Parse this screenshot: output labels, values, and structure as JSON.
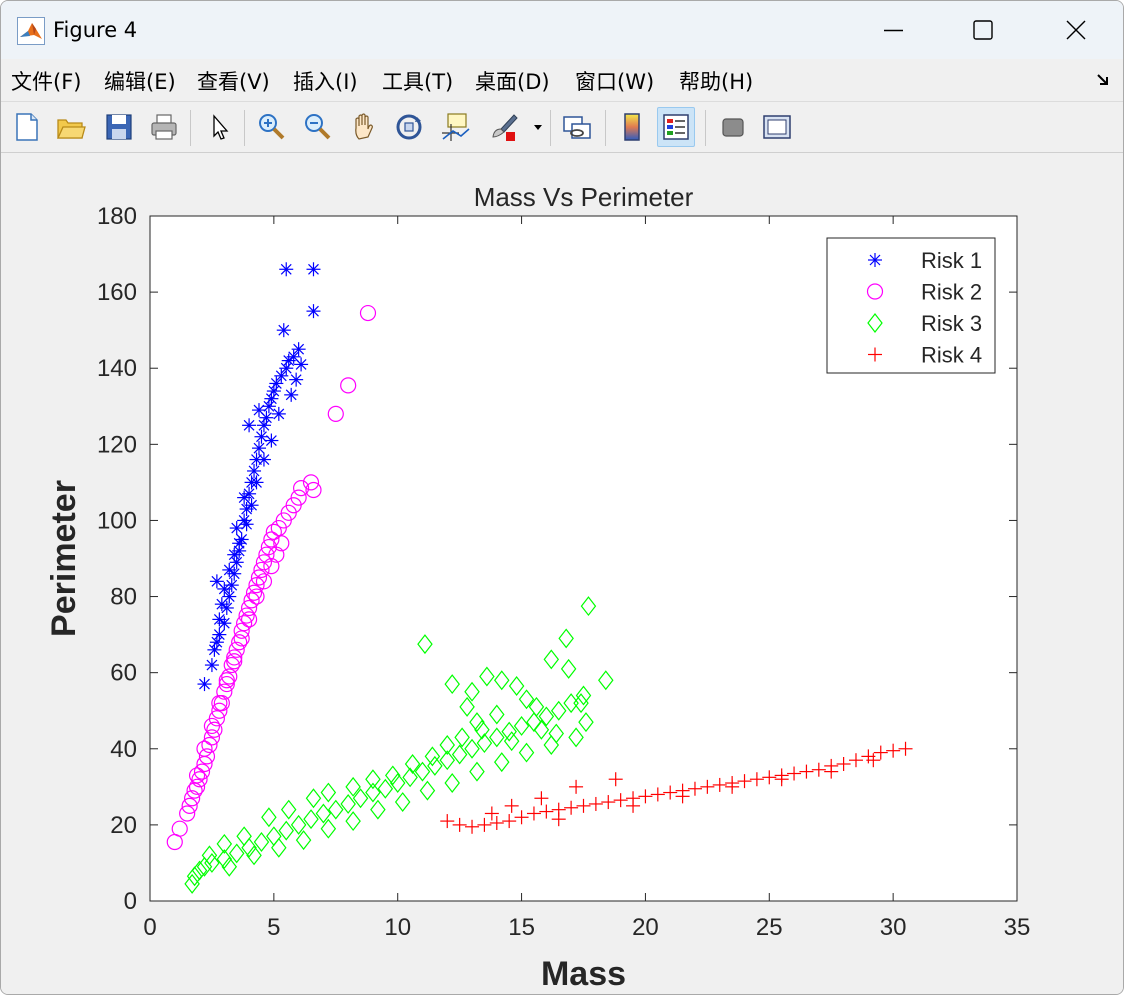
{
  "window": {
    "title": "Figure 4",
    "minimize_icon": "minimize-icon",
    "maximize_icon": "maximize-icon",
    "close_icon": "close-icon"
  },
  "menu": {
    "items": [
      "文件(F)",
      "编辑(E)",
      "查看(V)",
      "插入(I)",
      "工具(T)",
      "桌面(D)",
      "窗口(W)",
      "帮助(H)"
    ]
  },
  "toolbar": {
    "buttons": [
      "new-figure-icon",
      "open-file-icon",
      "save-icon",
      "print-icon",
      "pointer-icon",
      "zoom-in-icon",
      "zoom-out-icon",
      "pan-hand-icon",
      "rotate-3d-icon",
      "data-cursor-icon",
      "brush-icon",
      "link-plot-icon",
      "colorbar-icon",
      "legend-icon",
      "hide-plot-tools-icon",
      "show-plot-tools-icon"
    ],
    "active": "legend-icon"
  },
  "colors": {
    "risk1": "#0000ff",
    "risk2": "#ff00ff",
    "risk3": "#00ff00",
    "risk4": "#ff0000"
  },
  "chart_data": {
    "type": "scatter",
    "title": "Mass Vs Perimeter",
    "xlabel": "Mass",
    "ylabel": "Perimeter",
    "xlim": [
      0,
      35
    ],
    "ylim": [
      0,
      180
    ],
    "xticks": [
      0,
      5,
      10,
      15,
      20,
      25,
      30,
      35
    ],
    "yticks": [
      0,
      20,
      40,
      60,
      80,
      100,
      120,
      140,
      160,
      180
    ],
    "legend_position": "top-right",
    "grid": false,
    "series": [
      {
        "name": "Risk 1",
        "marker": "asterisk",
        "color": "#0000ff",
        "points": [
          [
            2.2,
            57
          ],
          [
            2.5,
            62
          ],
          [
            2.6,
            66
          ],
          [
            2.7,
            68
          ],
          [
            2.7,
            84
          ],
          [
            2.8,
            70
          ],
          [
            3.0,
            73
          ],
          [
            3.1,
            77
          ],
          [
            3.2,
            80
          ],
          [
            3.3,
            83
          ],
          [
            3.4,
            86
          ],
          [
            3.5,
            89
          ],
          [
            3.5,
            98
          ],
          [
            3.6,
            92
          ],
          [
            3.7,
            95
          ],
          [
            3.8,
            100
          ],
          [
            3.8,
            106
          ],
          [
            3.9,
            103
          ],
          [
            4.0,
            107
          ],
          [
            4.0,
            125
          ],
          [
            4.1,
            110
          ],
          [
            4.2,
            113
          ],
          [
            4.3,
            116
          ],
          [
            4.4,
            119
          ],
          [
            4.4,
            129
          ],
          [
            4.5,
            122
          ],
          [
            4.6,
            125
          ],
          [
            4.7,
            127
          ],
          [
            4.8,
            130
          ],
          [
            4.9,
            132
          ],
          [
            5.0,
            134
          ],
          [
            5.1,
            136
          ],
          [
            5.3,
            138
          ],
          [
            5.4,
            150
          ],
          [
            5.5,
            140
          ],
          [
            5.6,
            142
          ],
          [
            5.8,
            143
          ],
          [
            6.0,
            145
          ],
          [
            5.5,
            166
          ],
          [
            6.6,
            166
          ],
          [
            6.6,
            155
          ],
          [
            6.1,
            141
          ],
          [
            5.9,
            137
          ],
          [
            5.7,
            133
          ],
          [
            5.2,
            128
          ],
          [
            4.9,
            121
          ],
          [
            4.6,
            116
          ],
          [
            4.3,
            110
          ],
          [
            4.1,
            104
          ],
          [
            3.9,
            99
          ],
          [
            3.6,
            94
          ],
          [
            3.4,
            91
          ],
          [
            3.2,
            87
          ],
          [
            3.0,
            82
          ],
          [
            2.9,
            78
          ],
          [
            2.8,
            74
          ]
        ]
      },
      {
        "name": "Risk 2",
        "marker": "circle",
        "color": "#ff00ff",
        "points": [
          [
            1.0,
            15.5
          ],
          [
            1.2,
            19
          ],
          [
            1.5,
            23
          ],
          [
            1.6,
            25
          ],
          [
            1.7,
            27
          ],
          [
            1.8,
            29
          ],
          [
            1.9,
            30
          ],
          [
            2.0,
            32
          ],
          [
            2.1,
            34
          ],
          [
            2.2,
            36
          ],
          [
            2.3,
            38
          ],
          [
            2.4,
            41
          ],
          [
            2.5,
            43
          ],
          [
            2.6,
            45
          ],
          [
            2.7,
            48
          ],
          [
            2.8,
            50
          ],
          [
            2.9,
            52
          ],
          [
            3.0,
            55
          ],
          [
            3.1,
            57
          ],
          [
            3.2,
            59
          ],
          [
            3.3,
            62
          ],
          [
            3.4,
            64
          ],
          [
            3.5,
            66
          ],
          [
            3.6,
            68
          ],
          [
            3.7,
            71
          ],
          [
            3.8,
            73
          ],
          [
            3.9,
            75
          ],
          [
            4.0,
            77
          ],
          [
            4.1,
            79
          ],
          [
            4.2,
            81
          ],
          [
            4.3,
            83
          ],
          [
            4.4,
            85
          ],
          [
            4.5,
            87
          ],
          [
            4.6,
            89
          ],
          [
            4.7,
            91
          ],
          [
            4.8,
            93
          ],
          [
            4.9,
            95
          ],
          [
            5.0,
            97
          ],
          [
            5.2,
            98
          ],
          [
            5.4,
            100
          ],
          [
            5.6,
            102
          ],
          [
            5.8,
            104
          ],
          [
            6.0,
            106
          ],
          [
            6.1,
            108.5
          ],
          [
            6.5,
            110
          ],
          [
            6.6,
            108
          ],
          [
            7.5,
            128
          ],
          [
            8.0,
            135.5
          ],
          [
            8.8,
            154.5
          ],
          [
            5.3,
            94
          ],
          [
            5.1,
            91
          ],
          [
            4.9,
            88
          ],
          [
            4.6,
            84
          ],
          [
            4.3,
            80
          ],
          [
            4.0,
            74
          ],
          [
            3.7,
            69
          ],
          [
            3.4,
            63
          ],
          [
            3.1,
            58
          ],
          [
            2.8,
            52
          ],
          [
            2.5,
            46
          ],
          [
            2.2,
            40
          ],
          [
            1.9,
            33
          ]
        ]
      },
      {
        "name": "Risk 3",
        "marker": "diamond",
        "color": "#00ff00",
        "points": [
          [
            1.7,
            4.5
          ],
          [
            1.8,
            6.5
          ],
          [
            2.0,
            8
          ],
          [
            2.2,
            9
          ],
          [
            2.5,
            10
          ],
          [
            3,
            11
          ],
          [
            3.5,
            12.5
          ],
          [
            4,
            14
          ],
          [
            4.5,
            15.5
          ],
          [
            5,
            17
          ],
          [
            5.5,
            18.5
          ],
          [
            6,
            20
          ],
          [
            6.5,
            21.5
          ],
          [
            7,
            23
          ],
          [
            7.5,
            24
          ],
          [
            8,
            25.5
          ],
          [
            8.5,
            27
          ],
          [
            9,
            28.5
          ],
          [
            9.5,
            29.5
          ],
          [
            10,
            31
          ],
          [
            10.5,
            32.5
          ],
          [
            11,
            34
          ],
          [
            11.5,
            35.5
          ],
          [
            12,
            37
          ],
          [
            12.5,
            38.5
          ],
          [
            13,
            40
          ],
          [
            13.5,
            41.5
          ],
          [
            14,
            43
          ],
          [
            14.5,
            44.5
          ],
          [
            15,
            46
          ],
          [
            15.5,
            47
          ],
          [
            16,
            48.5
          ],
          [
            16.5,
            50
          ],
          [
            17,
            52
          ],
          [
            17.5,
            54
          ],
          [
            11.1,
            67.5
          ],
          [
            12.2,
            57
          ],
          [
            13.0,
            55
          ],
          [
            13.6,
            59
          ],
          [
            14.2,
            58
          ],
          [
            14.8,
            56.5
          ],
          [
            15.6,
            51
          ],
          [
            16.2,
            63.5
          ],
          [
            16.8,
            69
          ],
          [
            17.7,
            77.5
          ],
          [
            18.4,
            58
          ],
          [
            16.9,
            61
          ],
          [
            17.4,
            52
          ],
          [
            15.2,
            53
          ],
          [
            14.0,
            49
          ],
          [
            13.2,
            47
          ],
          [
            12.6,
            43
          ],
          [
            12.0,
            41
          ],
          [
            11.4,
            38
          ],
          [
            10.6,
            36
          ],
          [
            9.8,
            33
          ],
          [
            9.0,
            32
          ],
          [
            8.2,
            30
          ],
          [
            7.2,
            28.5
          ],
          [
            6.6,
            27
          ],
          [
            5.6,
            24
          ],
          [
            4.8,
            22
          ],
          [
            3.8,
            17
          ],
          [
            3,
            15
          ],
          [
            2.4,
            12
          ],
          [
            3.2,
            9
          ],
          [
            4.2,
            12
          ],
          [
            5.2,
            14
          ],
          [
            6.2,
            16
          ],
          [
            7.2,
            19
          ],
          [
            8.2,
            21
          ],
          [
            9.2,
            24
          ],
          [
            10.2,
            26
          ],
          [
            11.2,
            29
          ],
          [
            12.2,
            31
          ],
          [
            13.2,
            34
          ],
          [
            14.2,
            36.5
          ],
          [
            15.2,
            39
          ],
          [
            16.2,
            41
          ],
          [
            17.2,
            43
          ],
          [
            17.6,
            47
          ],
          [
            12.8,
            51
          ],
          [
            13.4,
            45
          ],
          [
            14.6,
            42
          ],
          [
            15.8,
            45
          ],
          [
            16.4,
            44
          ]
        ]
      },
      {
        "name": "Risk 4",
        "marker": "plus",
        "color": "#ff0000",
        "points": [
          [
            12.0,
            21
          ],
          [
            12.5,
            20
          ],
          [
            13.0,
            19.5
          ],
          [
            13.5,
            20
          ],
          [
            14.0,
            20.5
          ],
          [
            14.5,
            21
          ],
          [
            15.0,
            22
          ],
          [
            15.5,
            23
          ],
          [
            16.0,
            23.5
          ],
          [
            16.5,
            24
          ],
          [
            17.0,
            24.5
          ],
          [
            17.5,
            25
          ],
          [
            18.0,
            25.5
          ],
          [
            18.5,
            26
          ],
          [
            19.0,
            26.5
          ],
          [
            19.5,
            27
          ],
          [
            20.0,
            27.5
          ],
          [
            20.5,
            28
          ],
          [
            21.0,
            28.5
          ],
          [
            21.5,
            29
          ],
          [
            22.0,
            29.5
          ],
          [
            22.5,
            30
          ],
          [
            23.0,
            30.5
          ],
          [
            23.5,
            31
          ],
          [
            24.0,
            31.5
          ],
          [
            24.5,
            32
          ],
          [
            25.0,
            32.5
          ],
          [
            25.5,
            33
          ],
          [
            26.0,
            33.5
          ],
          [
            26.5,
            34
          ],
          [
            27.0,
            34.5
          ],
          [
            27.5,
            35.5
          ],
          [
            28.0,
            36
          ],
          [
            28.5,
            37
          ],
          [
            29.0,
            38
          ],
          [
            29.5,
            39
          ],
          [
            30.0,
            39.5
          ],
          [
            30.5,
            40
          ],
          [
            18.8,
            32
          ],
          [
            17.2,
            30
          ],
          [
            15.8,
            27
          ],
          [
            14.6,
            25
          ],
          [
            13.8,
            23
          ],
          [
            16.5,
            21.5
          ],
          [
            19.5,
            25
          ],
          [
            21.5,
            27.5
          ],
          [
            23.5,
            30
          ],
          [
            25.5,
            32
          ],
          [
            27.5,
            34
          ],
          [
            29.2,
            37
          ]
        ]
      }
    ]
  }
}
